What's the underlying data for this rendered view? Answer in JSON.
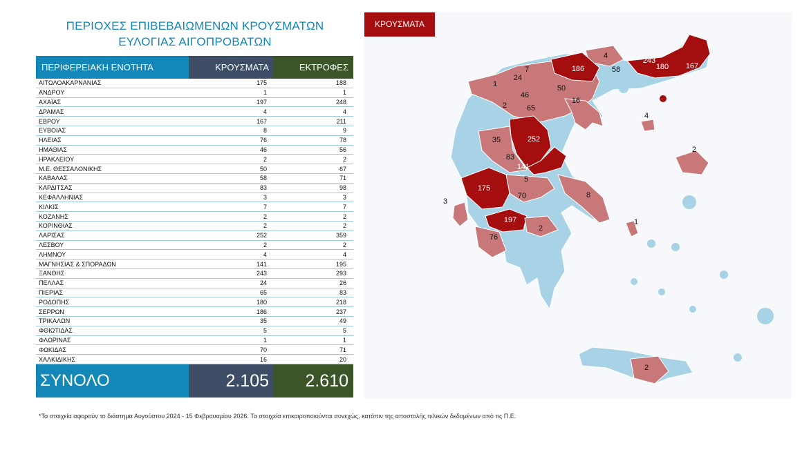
{
  "title_line1": "ΠΕΡΙΟΧΕΣ ΕΠΙΒΕΒΑΙΩΜΕΝΩΝ ΚΡΟΥΣΜΑΤΩΝ",
  "title_line2": "ΕΥΛΟΓΙΑΣ ΑΙΓΟΠΡΟΒΑΤΩΝ",
  "table": {
    "headers": [
      "ΠΕΡΙΦΕΡΕΙΑΚΗ ΕΝΟΤΗΤΑ",
      "ΚΡΟΥΣΜΑΤΑ",
      "ΕΚΤΡΟΦΕΣ"
    ],
    "rows": [
      [
        "ΑΙΤΩΛΟΑΚΑΡΝΑΝΙΑΣ",
        "175",
        "188"
      ],
      [
        "ΑΝΔΡΟΥ",
        "1",
        "1"
      ],
      [
        "ΑΧΑΪΑΣ",
        "197",
        "248"
      ],
      [
        "ΔΡΑΜΑΣ",
        "4",
        "4"
      ],
      [
        "ΕΒΡΟΥ",
        "167",
        "211"
      ],
      [
        "ΕΥΒΟΙΑΣ",
        "8",
        "9"
      ],
      [
        "ΗΛΕΙΑΣ",
        "76",
        "78"
      ],
      [
        "ΗΜΑΘΙΑΣ",
        "46",
        "56"
      ],
      [
        "ΗΡΑΚΛΕΙΟΥ",
        "2",
        "2"
      ],
      [
        "Μ.Ε. ΘΕΣΣΑΛΟΝΙΚΗΣ",
        "50",
        "67"
      ],
      [
        "ΚΑΒΑΛΑΣ",
        "58",
        "71"
      ],
      [
        "ΚΑΡΔΙΤΣΑΣ",
        "83",
        "98"
      ],
      [
        "ΚΕΦΑΛΛΗΝΙΑΣ",
        "3",
        "3"
      ],
      [
        "ΚΙΛΚΙΣ",
        "7",
        "7"
      ],
      [
        "ΚΟΖΑΝΗΣ",
        "2",
        "2"
      ],
      [
        "ΚΟΡΙΝΘΙΑΣ",
        "2",
        "2"
      ],
      [
        "ΛΑΡΙΣΑΣ",
        "252",
        "359"
      ],
      [
        "ΛΕΣΒΟΥ",
        "2",
        "2"
      ],
      [
        "ΛΗΜΝΟΥ",
        "4",
        "4"
      ],
      [
        "ΜΑΓΝΗΣΙΑΣ & ΣΠΟΡΑΔΩΝ",
        "141",
        "195"
      ],
      [
        "ΞΑΝΘΗΣ",
        "243",
        "293"
      ],
      [
        "ΠΕΛΛΑΣ",
        "24",
        "26"
      ],
      [
        "ΠΙΕΡΙΑΣ",
        "65",
        "83"
      ],
      [
        "ΡΟΔΟΠΗΣ",
        "180",
        "218"
      ],
      [
        "ΣΕΡΡΩΝ",
        "186",
        "237"
      ],
      [
        "ΤΡΙΚΑΛΩΝ",
        "35",
        "49"
      ],
      [
        "ΦΘΙΩΤΙΔΑΣ",
        "5",
        "5"
      ],
      [
        "ΦΛΩΡΙΝΑΣ",
        "1",
        "1"
      ],
      [
        "ΦΩΚΙΔΑΣ",
        "70",
        "71"
      ],
      [
        "ΧΑΛΚΙΔΙΚΗΣ",
        "16",
        "20"
      ]
    ],
    "total_label": "ΣΥΝΟΛΟ",
    "total_cases": "2.105",
    "total_farms": "2.610"
  },
  "map": {
    "legend_label": "ΚΡΟΥΣΜΑΤΑ",
    "colors": {
      "high": "#a50e0e",
      "medium": "#c87878",
      "none": "#a8d3e6"
    },
    "labels": [
      {
        "region": "ΑΙΤΩΛΟΑΚΑΡΝΑΝΙΑΣ",
        "value": "175",
        "level": "high"
      },
      {
        "region": "ΑΝΔΡΟΥ",
        "value": "1",
        "level": "medium"
      },
      {
        "region": "ΑΧΑΪΑΣ",
        "value": "197",
        "level": "high"
      },
      {
        "region": "ΔΡΑΜΑΣ",
        "value": "4",
        "level": "medium"
      },
      {
        "region": "ΕΒΡΟΥ",
        "value": "167",
        "level": "high"
      },
      {
        "region": "ΕΥΒΟΙΑΣ",
        "value": "8",
        "level": "medium"
      },
      {
        "region": "ΗΛΕΙΑΣ",
        "value": "76",
        "level": "medium"
      },
      {
        "region": "ΗΜΑΘΙΑΣ",
        "value": "46",
        "level": "medium"
      },
      {
        "region": "ΗΡΑΚΛΕΙΟΥ",
        "value": "2",
        "level": "medium"
      },
      {
        "region": "Μ.Ε. ΘΕΣΣΑΛΟΝΙΚΗΣ",
        "value": "50",
        "level": "medium"
      },
      {
        "region": "ΚΑΒΑΛΑΣ",
        "value": "58",
        "level": "medium"
      },
      {
        "region": "ΚΑΡΔΙΤΣΑΣ",
        "value": "83",
        "level": "medium"
      },
      {
        "region": "ΚΕΦΑΛΛΗΝΙΑΣ",
        "value": "3",
        "level": "medium"
      },
      {
        "region": "ΚΙΛΚΙΣ",
        "value": "7",
        "level": "medium"
      },
      {
        "region": "ΚΟΖΑΝΗΣ",
        "value": "2",
        "level": "medium"
      },
      {
        "region": "ΚΟΡΙΝΘΙΑΣ",
        "value": "2",
        "level": "medium"
      },
      {
        "region": "ΛΑΡΙΣΑΣ",
        "value": "252",
        "level": "high"
      },
      {
        "region": "ΛΕΣΒΟΥ",
        "value": "2",
        "level": "medium"
      },
      {
        "region": "ΛΗΜΝΟΥ",
        "value": "4",
        "level": "medium"
      },
      {
        "region": "ΜΑΓΝΗΣΙΑΣ & ΣΠΟΡΑΔΩΝ",
        "value": "141",
        "level": "high"
      },
      {
        "region": "ΞΑΝΘΗΣ",
        "value": "243",
        "level": "high"
      },
      {
        "region": "ΠΕΛΛΑΣ",
        "value": "24",
        "level": "medium"
      },
      {
        "region": "ΠΙΕΡΙΑΣ",
        "value": "65",
        "level": "medium"
      },
      {
        "region": "ΡΟΔΟΠΗΣ",
        "value": "180",
        "level": "high"
      },
      {
        "region": "ΣΕΡΡΩΝ",
        "value": "186",
        "level": "high"
      },
      {
        "region": "ΤΡΙΚΑΛΩΝ",
        "value": "35",
        "level": "medium"
      },
      {
        "region": "ΦΘΙΩΤΙΔΑΣ",
        "value": "5",
        "level": "medium"
      },
      {
        "region": "ΦΛΩΡΙΝΑΣ",
        "value": "1",
        "level": "medium"
      },
      {
        "region": "ΦΩΚΙΔΑΣ",
        "value": "70",
        "level": "medium"
      },
      {
        "region": "ΧΑΛΚΙΔΙΚΗΣ",
        "value": "16",
        "level": "medium"
      }
    ]
  },
  "footnote": "*Τα στοιχεία αφορούν το διάστημα Αυγούστου 2024 - 15 Φεβρουαρίου 2026. Τα στοιχεία επικαιροποιούνται συνεχώς, κατόπιν της αποστολής τελικών δεδομένων από τις Π.Ε."
}
